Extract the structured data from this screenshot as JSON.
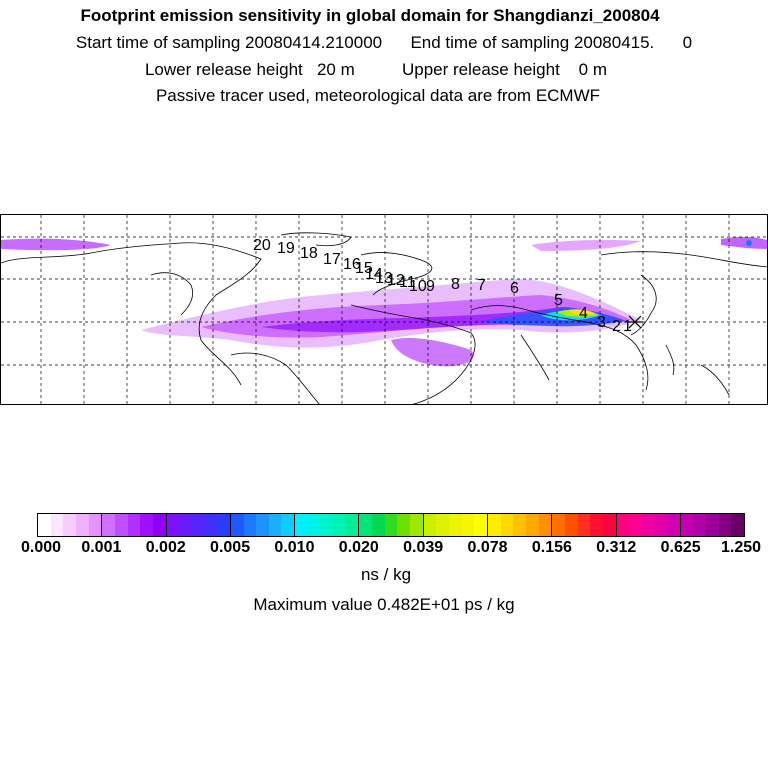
{
  "header": {
    "line1": "Footprint emission sensitivity in global domain for Shangdianzi_200804",
    "line2": "Start time of sampling 20080414.210000      End time of sampling 20080415.      0",
    "line3": "Lower release height   20 m          Upper release height    0 m",
    "line4": "Passive tracer used, meteorological data are from ECMWF"
  },
  "map": {
    "trajectory_labels": [
      "1",
      "2",
      "3",
      "4",
      "5",
      "6",
      "7",
      "8",
      "9",
      "10",
      "11",
      "12",
      "13",
      "14",
      "15",
      "16",
      "17",
      "18",
      "19",
      "20"
    ]
  },
  "colorbar": {
    "ticks": [
      "0.000",
      "0.001",
      "0.002",
      "0.005",
      "0.010",
      "0.020",
      "0.039",
      "0.078",
      "0.156",
      "0.312",
      "0.625",
      "1.250"
    ],
    "colors": [
      "#ffffff",
      "#fbe6ff",
      "#f6ccff",
      "#efb0ff",
      "#e493ff",
      "#d070ff",
      "#c050ff",
      "#b030ff",
      "#a010ff",
      "#9000f8",
      "#7d10ff",
      "#6a1aff",
      "#5525ff",
      "#4030ff",
      "#2a3dff",
      "#1e5aff",
      "#1e78ff",
      "#1c93ff",
      "#18b0ff",
      "#10cdff",
      "#00f0ff",
      "#00f2e6",
      "#00f4cc",
      "#00f2b0",
      "#00ee96",
      "#00e678",
      "#00d850",
      "#30dc20",
      "#6ee000",
      "#a0e800",
      "#c8f000",
      "#dcf200",
      "#ecf400",
      "#f6f600",
      "#ffff00",
      "#ffec00",
      "#ffd800",
      "#ffc000",
      "#ffa800",
      "#ff9000",
      "#ff7000",
      "#ff5000",
      "#ff3020",
      "#ff1030",
      "#ff0040",
      "#ff0080",
      "#ff0090",
      "#f000a0",
      "#e000a8",
      "#d000b0",
      "#c000b0",
      "#b000a8",
      "#9a0098",
      "#800080",
      "#660066"
    ],
    "unit": "ns / kg",
    "max_value_text": "Maximum value  0.482E+01 ps / kg"
  }
}
